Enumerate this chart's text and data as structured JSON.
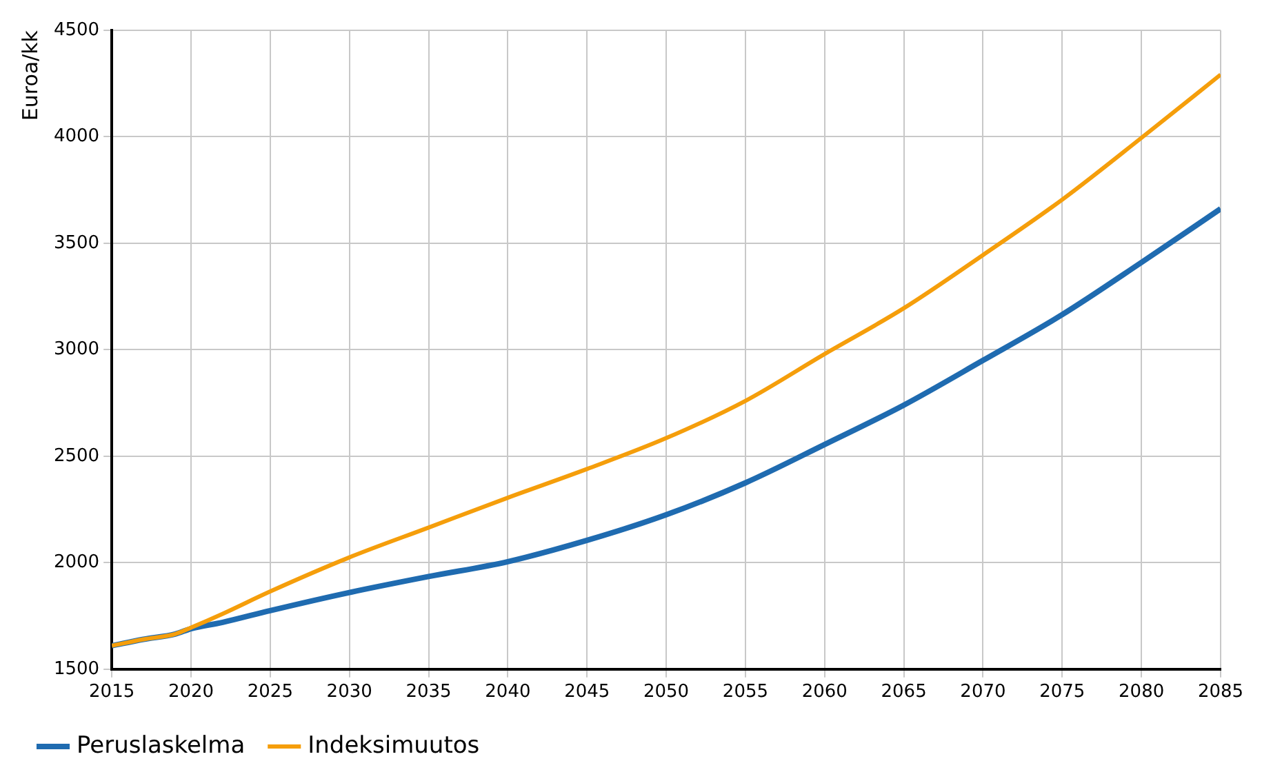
{
  "chart_data": {
    "type": "line",
    "ylabel": "Euroa/kk",
    "x": [
      2015,
      2017,
      2019,
      2020,
      2022,
      2025,
      2030,
      2035,
      2040,
      2045,
      2050,
      2055,
      2060,
      2065,
      2070,
      2075,
      2080,
      2085
    ],
    "series": [
      {
        "name": "Peruslaskelma",
        "color": "#1f6bb0",
        "values": [
          1610,
          1640,
          1665,
          1690,
          1720,
          1775,
          1860,
          1935,
          2005,
          2105,
          2225,
          2375,
          2555,
          2740,
          2950,
          3165,
          3410,
          3662
        ]
      },
      {
        "name": "Indeksimuutos",
        "color": "#f59e0b",
        "values": [
          1610,
          1640,
          1665,
          1695,
          1760,
          1865,
          2025,
          2165,
          2305,
          2440,
          2585,
          2760,
          2980,
          3195,
          3445,
          3705,
          3995,
          4292
        ]
      }
    ],
    "xlim": [
      2015,
      2085
    ],
    "xticks": [
      2015,
      2020,
      2025,
      2030,
      2035,
      2040,
      2045,
      2050,
      2055,
      2060,
      2065,
      2070,
      2075,
      2080,
      2085
    ],
    "ylim": [
      1500,
      4500
    ],
    "yticks": [
      1500,
      2000,
      2500,
      3000,
      3500,
      4000,
      4500
    ],
    "grid": true,
    "legend": "bottom",
    "marker": "none",
    "line_style": "solid"
  }
}
